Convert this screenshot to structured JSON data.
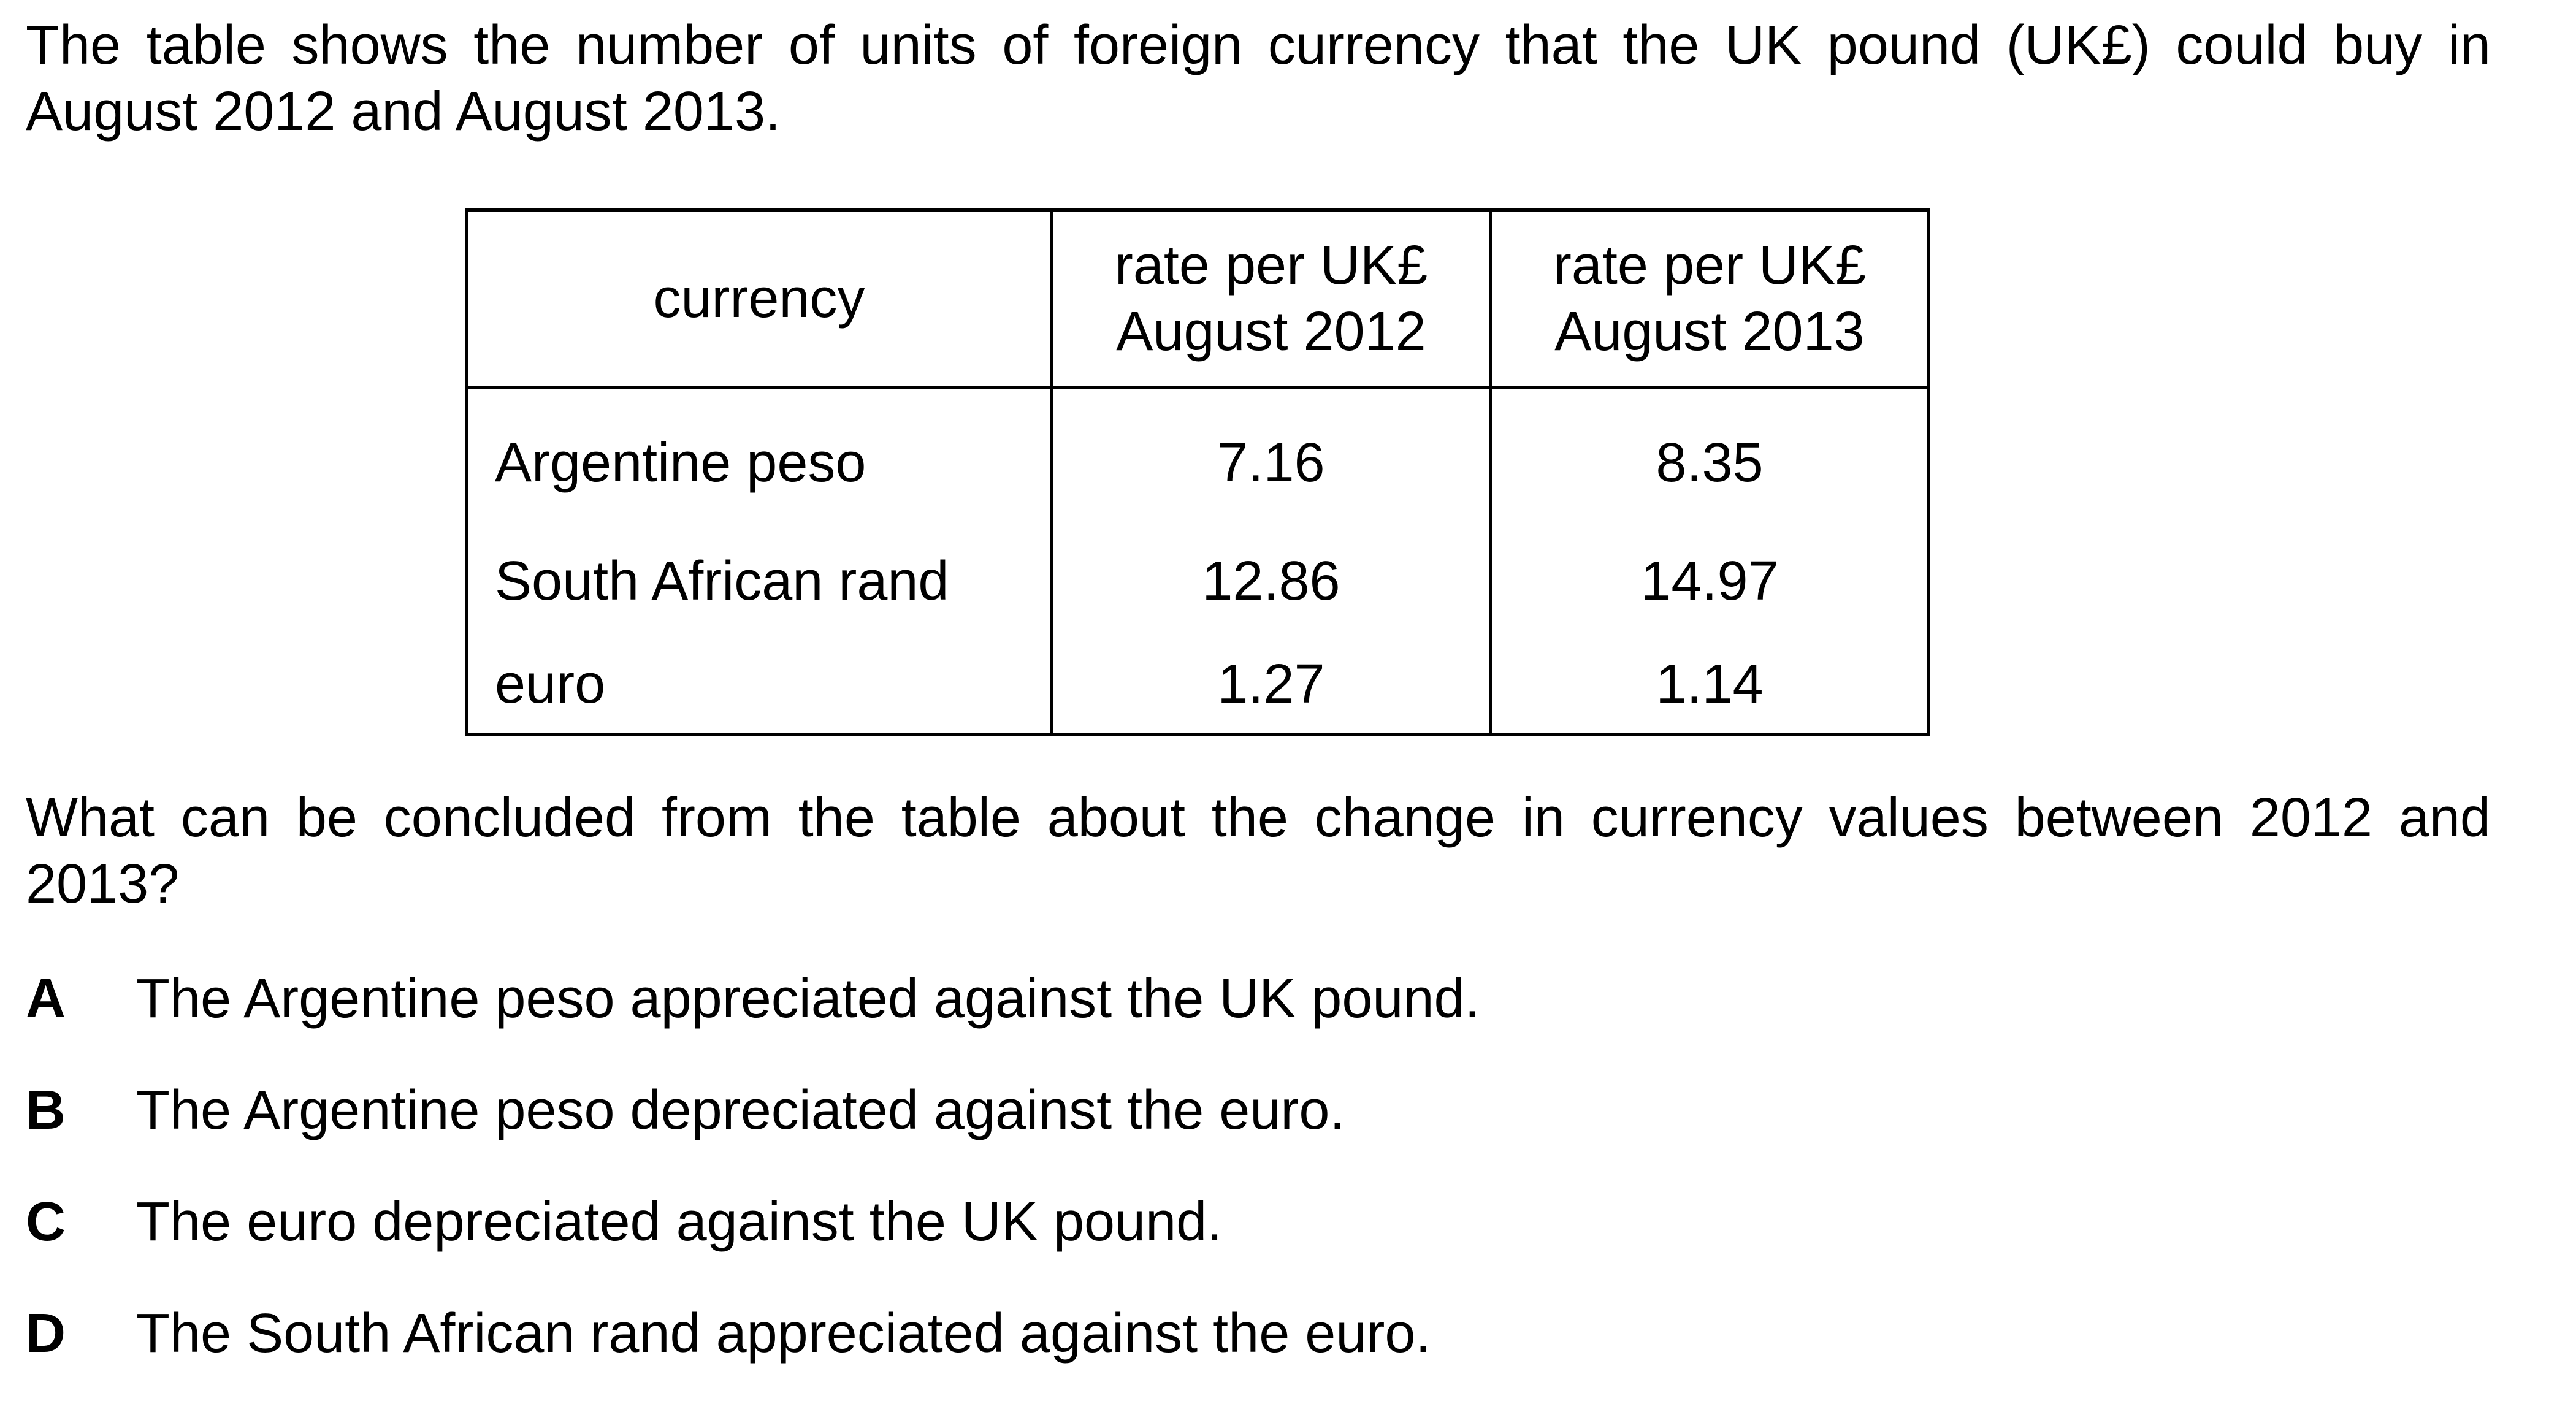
{
  "intro": "The table shows the number of units of foreign currency that the UK pound (UK£) could buy in August 2012 and August 2013.",
  "table": {
    "headers": [
      [
        "currency"
      ],
      [
        "rate per UK£",
        "August 2012"
      ],
      [
        "rate per UK£",
        "August 2013"
      ]
    ],
    "rows": [
      {
        "currency": "Argentine peso",
        "rate_2012": "7.16",
        "rate_2013": "8.35"
      },
      {
        "currency": "South African rand",
        "rate_2012": "12.86",
        "rate_2013": "14.97"
      },
      {
        "currency": "euro",
        "rate_2012": "1.27",
        "rate_2013": "1.14"
      }
    ]
  },
  "question": "What can be concluded from the table about the change in currency values between 2012 and 2013?",
  "options": [
    {
      "letter": "A",
      "text": "The Argentine peso appreciated against the UK pound."
    },
    {
      "letter": "B",
      "text": "The Argentine peso depreciated against the euro."
    },
    {
      "letter": "C",
      "text": "The euro depreciated against the UK pound."
    },
    {
      "letter": "D",
      "text": "The South African rand appreciated against the euro."
    }
  ]
}
